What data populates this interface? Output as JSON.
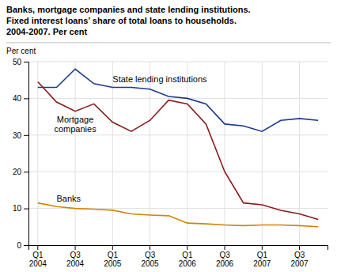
{
  "chart_data": {
    "type": "line",
    "title": "Banks, mortgage companies and state lending institutions.\nFixed interest loans’ share of total loans to households.\n2004-2007. Per cent",
    "y_label": "Per cent",
    "categories": [
      "Q1\n2004",
      null,
      "Q3\n2004",
      null,
      "Q1\n2005",
      null,
      "Q3\n2005",
      null,
      "Q1\n2006",
      null,
      "Q3\n2006",
      null,
      "Q1\n2007",
      null,
      "Q3\n2007",
      null
    ],
    "series": [
      {
        "name": "State lending institutions",
        "color": "#1a3a8c",
        "values": [
          43,
          43,
          48,
          44,
          43,
          43,
          42.5,
          40.5,
          40,
          38.5,
          33,
          32.5,
          31,
          34,
          34.5,
          34
        ]
      },
      {
        "name": "Mortgage\ncompanies",
        "color": "#8b1a1a",
        "values": [
          44.5,
          39,
          36.5,
          38.5,
          33.5,
          31,
          34,
          39.5,
          38.5,
          33,
          20,
          11.5,
          11,
          9.5,
          8.5,
          7
        ]
      },
      {
        "name": "Banks",
        "color": "#d4820a",
        "values": [
          11.5,
          10.5,
          10,
          9.8,
          9.5,
          8.5,
          8.2,
          8.0,
          6,
          5.8,
          5.5,
          5.3,
          5.5,
          5.5,
          5.3,
          5.0
        ]
      }
    ],
    "ylim": [
      0,
      50
    ],
    "yticks": [
      0,
      10,
      20,
      30,
      40,
      50
    ],
    "grid": true
  }
}
